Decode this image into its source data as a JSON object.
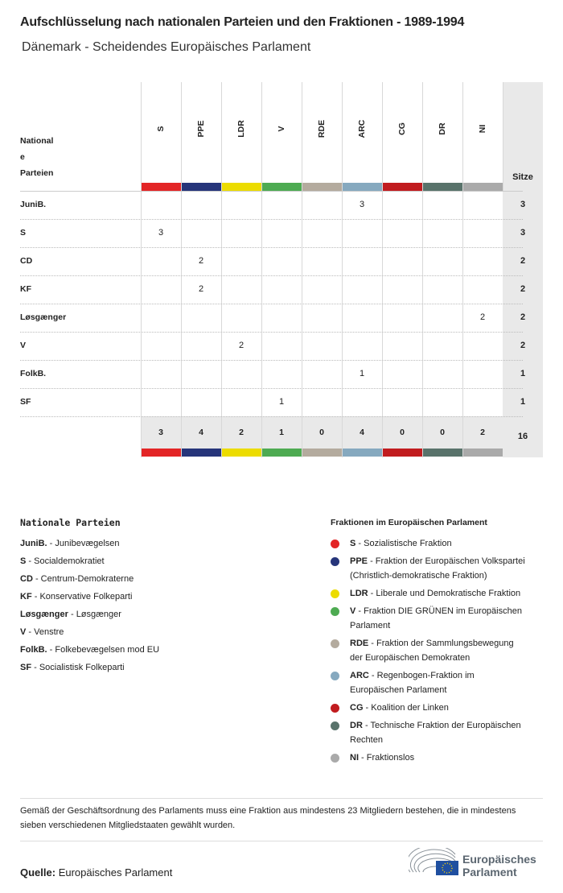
{
  "title": "Aufschlüsselung nach nationalen Parteien und den Fraktionen - 1989-1994",
  "subtitle": "Dänemark - Scheidendes Europäisches Parlament",
  "table": {
    "row_header": [
      "National",
      "e",
      "Parteien"
    ],
    "total_header": "Sitze",
    "groups": [
      {
        "code": "S",
        "color": "#e32526"
      },
      {
        "code": "PPE",
        "color": "#26357a"
      },
      {
        "code": "LDR",
        "color": "#ecdc00"
      },
      {
        "code": "V",
        "color": "#4eab52"
      },
      {
        "code": "RDE",
        "color": "#b4ab9e"
      },
      {
        "code": "ARC",
        "color": "#86a9bf"
      },
      {
        "code": "CG",
        "color": "#c11c1f"
      },
      {
        "code": "DR",
        "color": "#59736b"
      },
      {
        "code": "NI",
        "color": "#aaaaaa"
      }
    ],
    "rows": [
      {
        "party": "JuniB.",
        "values": [
          "",
          "",
          "",
          "",
          "",
          "3",
          "",
          "",
          ""
        ],
        "total": "3"
      },
      {
        "party": "S",
        "values": [
          "3",
          "",
          "",
          "",
          "",
          "",
          "",
          "",
          ""
        ],
        "total": "3"
      },
      {
        "party": "CD",
        "values": [
          "",
          "2",
          "",
          "",
          "",
          "",
          "",
          "",
          ""
        ],
        "total": "2"
      },
      {
        "party": "KF",
        "values": [
          "",
          "2",
          "",
          "",
          "",
          "",
          "",
          "",
          ""
        ],
        "total": "2"
      },
      {
        "party": "Løsgænger",
        "values": [
          "",
          "",
          "",
          "",
          "",
          "",
          "",
          "",
          "2"
        ],
        "total": "2"
      },
      {
        "party": "V",
        "values": [
          "",
          "",
          "2",
          "",
          "",
          "",
          "",
          "",
          ""
        ],
        "total": "2"
      },
      {
        "party": "FolkB.",
        "values": [
          "",
          "",
          "",
          "",
          "",
          "1",
          "",
          "",
          ""
        ],
        "total": "1"
      },
      {
        "party": "SF",
        "values": [
          "",
          "",
          "",
          "1",
          "",
          "",
          "",
          "",
          ""
        ],
        "total": "1"
      }
    ],
    "totals": [
      "3",
      "4",
      "2",
      "1",
      "0",
      "4",
      "0",
      "0",
      "2"
    ],
    "grand_total": "16"
  },
  "legend_parties": {
    "title": "Nationale Parteien",
    "items": [
      {
        "code": "JuniB.",
        "name": "Junibevægelsen"
      },
      {
        "code": "S",
        "name": "Socialdemokratiet"
      },
      {
        "code": "CD",
        "name": "Centrum-Demokraterne"
      },
      {
        "code": "KF",
        "name": "Konservative Folkeparti"
      },
      {
        "code": "Løsgænger",
        "name": "Løsgænger"
      },
      {
        "code": "V",
        "name": "Venstre"
      },
      {
        "code": "FolkB.",
        "name": "Folkebevægelsen mod EU"
      },
      {
        "code": "SF",
        "name": "Socialistisk Folkeparti"
      }
    ]
  },
  "legend_groups": {
    "title": "Fraktionen im Europäischen Parlament",
    "items": [
      {
        "code": "S",
        "name": "Sozialistische Fraktion"
      },
      {
        "code": "PPE",
        "name": "Fraktion der Europäischen Volkspartei",
        "name2": "(Christlich-demokratische Fraktion)"
      },
      {
        "code": "LDR",
        "name": "Liberale und Demokratische Fraktion"
      },
      {
        "code": "V",
        "name": "Fraktion DIE GRÜNEN im Europäischen",
        "name2": "Parlament"
      },
      {
        "code": "RDE",
        "name": "Fraktion der Sammlungsbewegung",
        "name2": "der Europäischen Demokraten"
      },
      {
        "code": "ARC",
        "name": "Regenbogen-Fraktion im",
        "name2": "Europäischen Parlament"
      },
      {
        "code": "CG",
        "name": "Koalition der Linken"
      },
      {
        "code": "DR",
        "name": "Technische Fraktion der Europäischen",
        "name2": "Rechten"
      },
      {
        "code": "NI",
        "name": "Fraktionslos"
      }
    ]
  },
  "note": "Gemäß der Geschäftsordnung des Parlaments muss eine Fraktion aus mindestens 23 Mitgliedern bestehen, die in mindestens sieben verschiedenen Mitgliedstaaten gewählt wurden.",
  "source_label": "Quelle:",
  "source_value": "Europäisches Parlament",
  "logo_text": [
    "Europäisches",
    "Parlament"
  ],
  "colors": {
    "logo_blue": "#1f4fa0",
    "logo_text": "#5b6670",
    "grey_bg": "#e9e9e9"
  }
}
